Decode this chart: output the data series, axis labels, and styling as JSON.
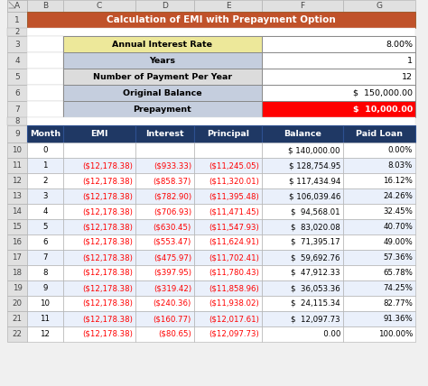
{
  "title": "Calculation of EMI with Prepayment Option",
  "title_bg": "#C0522A",
  "title_color": "#FFFFFF",
  "col_letters": [
    "A",
    "B",
    "C",
    "D",
    "E",
    "F",
    "G"
  ],
  "info_rows": [
    {
      "label": "Annual Interest Rate",
      "value": "8.00%",
      "label_bg": "#EDE89A",
      "value_bg": "#FFFFFF"
    },
    {
      "label": "Years",
      "value": "1",
      "label_bg": "#C5CEDE",
      "value_bg": "#FFFFFF"
    },
    {
      "label": "Number of Payment Per Year",
      "value": "12",
      "label_bg": "#DCDCDC",
      "value_bg": "#FFFFFF"
    },
    {
      "label": "Original Balance",
      "value": "$  150,000.00",
      "label_bg": "#C5CEDE",
      "value_bg": "#FFFFFF"
    },
    {
      "label": "Prepayment",
      "value": "$  10,000.00",
      "label_bg": "#C5CEDE",
      "value_bg": "#FF0000"
    }
  ],
  "table_headers": [
    "Month",
    "EMI",
    "Interest",
    "Principal",
    "Balance",
    "Paid Loan"
  ],
  "header_bg": "#1F3864",
  "header_color": "#FFFFFF",
  "table_data": [
    [
      "0",
      "",
      "",
      "",
      "$ 140,000.00",
      "0.00%"
    ],
    [
      "1",
      "($12,178.38)",
      "($933.33)",
      "($11,245.05)",
      "$ 128,754.95",
      "8.03%"
    ],
    [
      "2",
      "($12,178.38)",
      "($858.37)",
      "($11,320.01)",
      "$ 117,434.94",
      "16.12%"
    ],
    [
      "3",
      "($12,178.38)",
      "($782.90)",
      "($11,395.48)",
      "$ 106,039.46",
      "24.26%"
    ],
    [
      "4",
      "($12,178.38)",
      "($706.93)",
      "($11,471.45)",
      "$  94,568.01",
      "32.45%"
    ],
    [
      "5",
      "($12,178.38)",
      "($630.45)",
      "($11,547.93)",
      "$  83,020.08",
      "40.70%"
    ],
    [
      "6",
      "($12,178.38)",
      "($553.47)",
      "($11,624.91)",
      "$  71,395.17",
      "49.00%"
    ],
    [
      "7",
      "($12,178.38)",
      "($475.97)",
      "($11,702.41)",
      "$  59,692.76",
      "57.36%"
    ],
    [
      "8",
      "($12,178.38)",
      "($397.95)",
      "($11,780.43)",
      "$  47,912.33",
      "65.78%"
    ],
    [
      "9",
      "($12,178.38)",
      "($319.42)",
      "($11,858.96)",
      "$  36,053.36",
      "74.25%"
    ],
    [
      "10",
      "($12,178.38)",
      "($240.36)",
      "($11,938.02)",
      "$  24,115.34",
      "82.77%"
    ],
    [
      "11",
      "($12,178.38)",
      "($160.77)",
      "($12,017.61)",
      "$  12,097.73",
      "91.36%"
    ],
    [
      "12",
      "($12,178.38)",
      "($80.65)",
      "($12,097.73)",
      "       0.00",
      "100.00%"
    ]
  ],
  "red_text_color": "#FF0000",
  "black_text_color": "#000000",
  "header_border": "#2E5090",
  "cell_border": "#AAAAAA",
  "outer_bg": "#F0F0F0",
  "col_header_bg": "#E0E0E0",
  "row_header_bg": "#E0E0E0",
  "alt_row_colors": [
    "#FFFFFF",
    "#EAF0FB"
  ],
  "prepayment_text_color": "#FFFFFF"
}
